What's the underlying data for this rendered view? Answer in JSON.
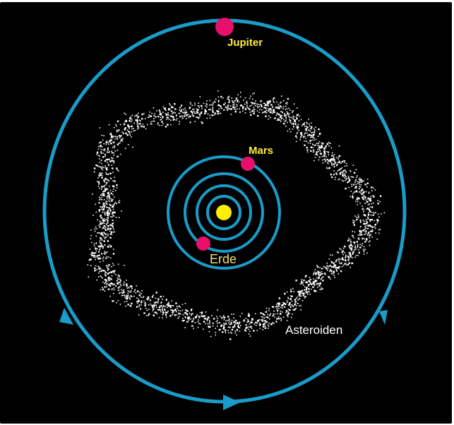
{
  "labels": {
    "jupiter": "Jupiter",
    "mars": "Mars",
    "earth": "Erde",
    "asteroids": "Asteroiden"
  },
  "colors": {
    "background": "#000000",
    "orbit": "#1a9cc9",
    "planet": "#e8106a",
    "sun": "#ffef00",
    "planet_label": "#ffee33",
    "earth_label": "#f3e27a",
    "asteroid_label": "#ffffff",
    "asteroid_dots": "#ffffff"
  },
  "icons": {
    "orbit_direction": "arrowhead-icon"
  }
}
